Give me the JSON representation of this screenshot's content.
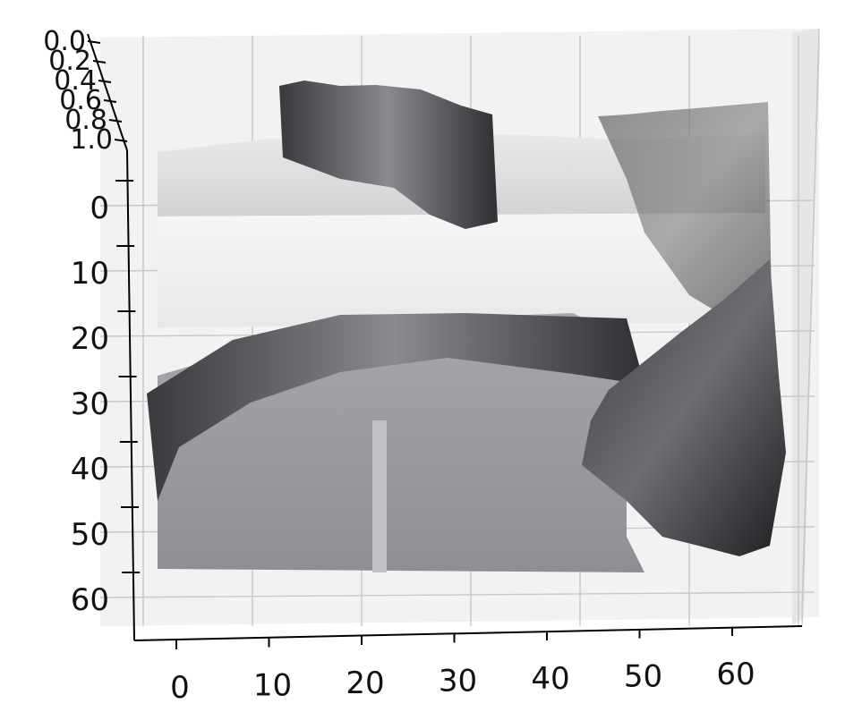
{
  "chart_data": {
    "type": "surface",
    "title": "",
    "xlabel": "",
    "ylabel": "",
    "zlabel": "",
    "grid": true,
    "colormap": "gray",
    "xlim": [
      0,
      64
    ],
    "ylim": [
      0,
      64
    ],
    "zlim": [
      0.0,
      1.0
    ],
    "x_ticks": [
      "0",
      "10",
      "20",
      "30",
      "40",
      "50",
      "60"
    ],
    "y_ticks": [
      "0",
      "10",
      "20",
      "30",
      "40",
      "50",
      "60"
    ],
    "z_ticks": [
      "0.0",
      "0.2",
      "0.4",
      "0.6",
      "0.8",
      "1.0"
    ],
    "surface_regions": [
      {
        "x_range": [
          0,
          64
        ],
        "y_range": [
          -4,
          1
        ],
        "z": 0.15,
        "note": "upper light band"
      },
      {
        "x_range": [
          12,
          35
        ],
        "y_range": [
          -8,
          0
        ],
        "z": 0.9,
        "note": "dark ridge"
      },
      {
        "x_range": [
          48,
          64
        ],
        "y_range": [
          -8,
          14
        ],
        "z": 0.7,
        "note": "right ridge"
      },
      {
        "x_range": [
          0,
          64
        ],
        "y_range": [
          1,
          17
        ],
        "z": 0.05,
        "note": "flat bright plateau"
      },
      {
        "x_range": [
          0,
          50
        ],
        "y_range": [
          17,
          30
        ],
        "z": 0.6,
        "note": "curved dark ridge"
      },
      {
        "x_range": [
          0,
          46
        ],
        "y_range": [
          30,
          52
        ],
        "z": 0.3,
        "note": "mid-grey plain"
      },
      {
        "x_range": [
          46,
          64
        ],
        "y_range": [
          30,
          52
        ],
        "z": 0.8,
        "note": "dark rough corner"
      }
    ]
  }
}
